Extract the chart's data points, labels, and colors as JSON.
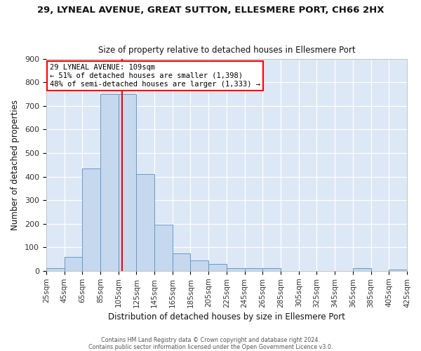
{
  "title": "29, LYNEAL AVENUE, GREAT SUTTON, ELLESMERE PORT, CH66 2HX",
  "subtitle": "Size of property relative to detached houses in Ellesmere Port",
  "xlabel": "Distribution of detached houses by size in Ellesmere Port",
  "ylabel": "Number of detached properties",
  "bar_edges": [
    25,
    45,
    65,
    85,
    105,
    125,
    145,
    165,
    185,
    205,
    225,
    245,
    265,
    285,
    305,
    325,
    345,
    365,
    385,
    405,
    425
  ],
  "bar_heights": [
    10,
    60,
    435,
    750,
    750,
    410,
    197,
    75,
    44,
    28,
    10,
    10,
    10,
    0,
    0,
    0,
    0,
    10,
    0,
    5
  ],
  "bar_color": "#c5d8ed",
  "bar_edgecolor": "#6699cc",
  "vline_x": 109,
  "vline_color": "red",
  "annotation_title": "29 LYNEAL AVENUE: 109sqm",
  "annotation_line2": "← 51% of detached houses are smaller (1,398)",
  "annotation_line3": "48% of semi-detached houses are larger (1,333) →",
  "annotation_box_facecolor": "white",
  "annotation_box_edgecolor": "red",
  "ylim": [
    0,
    900
  ],
  "xlim": [
    25,
    425
  ],
  "yticks": [
    0,
    100,
    200,
    300,
    400,
    500,
    600,
    700,
    800,
    900
  ],
  "xtick_labels": [
    "25sqm",
    "45sqm",
    "65sqm",
    "85sqm",
    "105sqm",
    "125sqm",
    "145sqm",
    "165sqm",
    "185sqm",
    "205sqm",
    "225sqm",
    "245sqm",
    "265sqm",
    "285sqm",
    "305sqm",
    "325sqm",
    "345sqm",
    "365sqm",
    "385sqm",
    "405sqm",
    "425sqm"
  ],
  "xtick_positions": [
    25,
    45,
    65,
    85,
    105,
    125,
    145,
    165,
    185,
    205,
    225,
    245,
    265,
    285,
    305,
    325,
    345,
    365,
    385,
    405,
    425
  ],
  "footer_line1": "Contains HM Land Registry data © Crown copyright and database right 2024.",
  "footer_line2": "Contains public sector information licensed under the Open Government Licence v3.0.",
  "fig_bg_color": "#ffffff",
  "ax_bg_color": "#dce8f5",
  "grid_color": "white",
  "title_fontsize": 9.5,
  "subtitle_fontsize": 8.5,
  "tick_fontsize": 7.5,
  "axis_label_fontsize": 8.5
}
